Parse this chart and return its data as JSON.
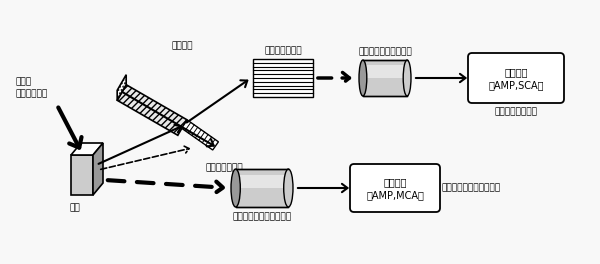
{
  "fig_width": 6.0,
  "fig_height": 2.64,
  "dpi": 100,
  "labels": {
    "electron_beam": "電子線\nあるいはＸ線",
    "sample": "試料",
    "crystal": "分光結晶",
    "soller1_top": "ソーラスリット",
    "soller2_label": "ソーラスリット",
    "detector_top": "検出器（比例計数管）",
    "circuit_top_line1": "計測回路",
    "circuit_top_line2": "（AMP,SCA）",
    "circuit_top_label": "（波長分散方式）",
    "detector_bottom_label": "検出器（半導体検出器）",
    "circuit_bottom_line1": "計測回路",
    "circuit_bottom_line2": "（AMP,MCA）",
    "circuit_bottom_label": "（エネルギー分散方式）"
  },
  "colors": {
    "white": "#ffffff",
    "black": "#000000",
    "gray_light": "#cccccc",
    "gray_mid": "#999999",
    "gray_dark": "#555555",
    "bg": "#f8f8f8"
  }
}
